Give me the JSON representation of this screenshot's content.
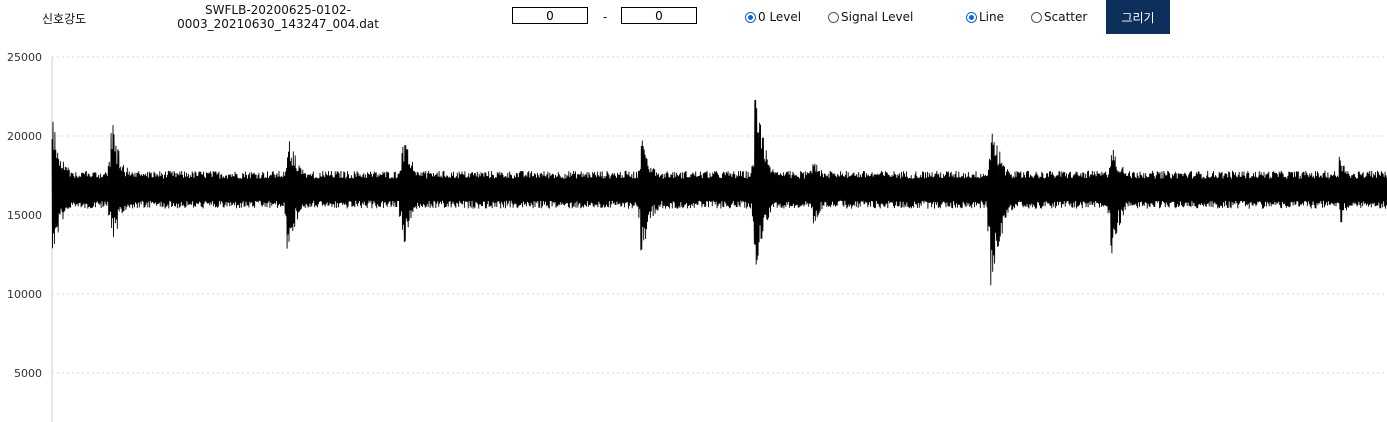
{
  "header": {
    "channel_label": "신호강도",
    "filename": "SWFLB-20200625-0102-0003_20210630_143247_004.dat",
    "range_from": "0",
    "range_to": "0",
    "range_sep": "-",
    "radio_zero_level": "0 Level",
    "radio_signal_level": "Signal Level",
    "radio_line": "Line",
    "radio_scatter": "Scatter",
    "draw_button": "그리기",
    "zero_level_selected": true,
    "line_selected": true
  },
  "chart_data": {
    "type": "line",
    "series_color": "#000000",
    "grid": true,
    "grid_style": "dotted horizontal",
    "ylim": [
      3000,
      25000
    ],
    "yticks": [
      "25000",
      "20000",
      "15000",
      "10000",
      "5000"
    ],
    "baseline": 16600,
    "bursts": [
      {
        "x": 0.0,
        "low": 12000,
        "high": 21500
      },
      {
        "x": 0.044,
        "low": 12500,
        "high": 21500
      },
      {
        "x": 0.176,
        "low": 12300,
        "high": 20800
      },
      {
        "x": 0.262,
        "low": 12200,
        "high": 20600
      },
      {
        "x": 0.441,
        "low": 11800,
        "high": 20500
      },
      {
        "x": 0.526,
        "low": 11000,
        "high": 23300
      },
      {
        "x": 0.57,
        "low": 14100,
        "high": 19000
      },
      {
        "x": 0.703,
        "low": 9900,
        "high": 21600
      },
      {
        "x": 0.793,
        "low": 12100,
        "high": 20300
      },
      {
        "x": 0.964,
        "low": 14000,
        "high": 19000
      }
    ]
  }
}
